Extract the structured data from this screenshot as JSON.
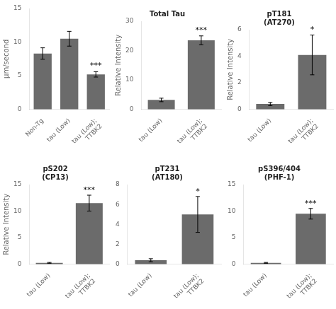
{
  "chart_data": [
    {
      "type": "bar",
      "ylabel": "μm/second",
      "categories": [
        "Non-Tg",
        "tau (Low)",
        "tau (Low);\nTTBK2"
      ],
      "values": [
        8.3,
        10.5,
        5.2
      ],
      "errors": [
        0.85,
        1.1,
        0.4
      ],
      "ylim": [
        0,
        15
      ],
      "yticks": [
        0,
        5,
        10,
        15
      ],
      "annotations": [
        null,
        null,
        "***"
      ],
      "color": "#6b6b6b",
      "grid": false
    },
    {
      "type": "bar",
      "title": "Total Tau",
      "ylabel": "Relative Intensity",
      "categories": [
        "tau (Low)",
        "tau (Low);\nTTBK2"
      ],
      "values": [
        3.2,
        23.5
      ],
      "errors": [
        0.6,
        1.5
      ],
      "ylim": [
        0,
        30
      ],
      "yticks": [
        0,
        10,
        20,
        30
      ],
      "annotations": [
        null,
        "***"
      ],
      "color": "#6b6b6b",
      "grid": false
    },
    {
      "type": "bar",
      "title": "pT181\n(AT270)",
      "ylabel": "Relative Intensity",
      "categories": [
        "tau (Low)",
        "tau (Low);\nTTBK2"
      ],
      "values": [
        0.4,
        4.1
      ],
      "errors": [
        0.12,
        1.5
      ],
      "ylim": [
        0,
        6
      ],
      "yticks": [
        0,
        2,
        4,
        6
      ],
      "annotations": [
        null,
        "*"
      ],
      "color": "#6b6b6b",
      "grid": false
    },
    {
      "type": "bar",
      "title": "pS202\n(CP13)",
      "ylabel": "Relative Intensity",
      "categories": [
        "tau (Low)",
        "tau (Low);\nTTBK2"
      ],
      "values": [
        0.25,
        11.5
      ],
      "errors": [
        0.08,
        1.5
      ],
      "ylim": [
        0,
        15
      ],
      "yticks": [
        0,
        5,
        10,
        15
      ],
      "annotations": [
        null,
        "***"
      ],
      "color": "#6b6b6b",
      "grid": false
    },
    {
      "type": "bar",
      "title": "pT231\n(AT180)",
      "categories": [
        "tau (Low)",
        "tau (Low);\nTTBK2"
      ],
      "values": [
        0.4,
        5.0
      ],
      "errors": [
        0.15,
        1.8
      ],
      "ylim": [
        0,
        8
      ],
      "yticks": [
        0,
        2,
        4,
        6,
        8
      ],
      "annotations": [
        null,
        "*"
      ],
      "color": "#6b6b6b",
      "grid": false
    },
    {
      "type": "bar",
      "title": "pS396/404\n(PHF-1)",
      "categories": [
        "tau (Low)",
        "tau (Low);\nTTBK2"
      ],
      "values": [
        0.25,
        9.5
      ],
      "errors": [
        0.08,
        1.0
      ],
      "ylim": [
        0,
        15
      ],
      "yticks": [
        0,
        5,
        10,
        15
      ],
      "annotations": [
        null,
        "***"
      ],
      "color": "#6b6b6b",
      "grid": false
    }
  ]
}
